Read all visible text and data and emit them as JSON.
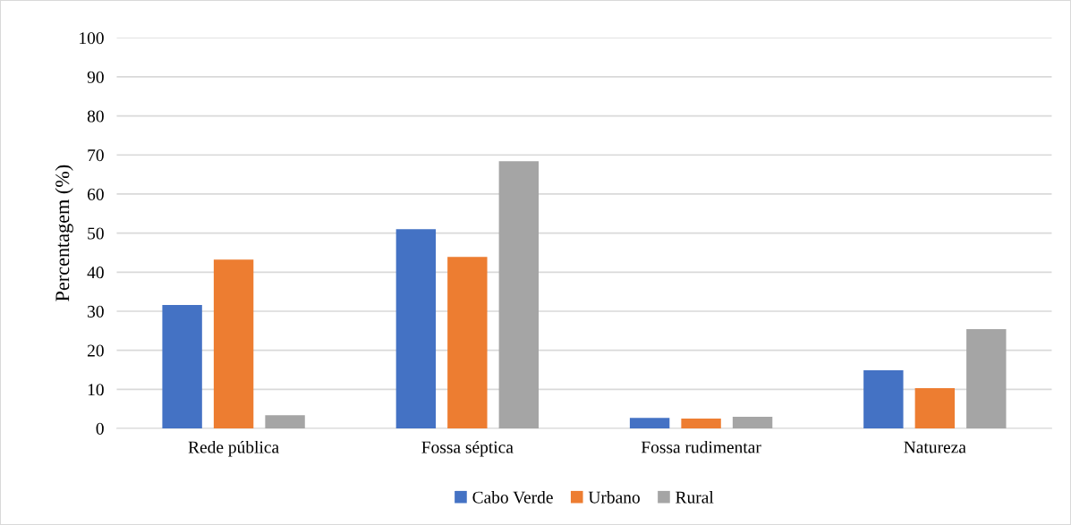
{
  "chart_data": {
    "type": "bar",
    "ylabel": "Percentagem (%)",
    "categories": [
      "Rede pública",
      "Fossa séptica",
      "Fossa rudimentar",
      "Natureza"
    ],
    "series": [
      {
        "name": "Cabo Verde",
        "color": "#4472c4",
        "values": [
          31.6,
          51.0,
          2.7,
          14.9
        ]
      },
      {
        "name": "Urbano",
        "color": "#ed7d31",
        "values": [
          43.2,
          43.9,
          2.5,
          10.3
        ]
      },
      {
        "name": "Rural",
        "color": "#a5a5a5",
        "values": [
          3.4,
          68.4,
          3.0,
          25.4
        ]
      }
    ],
    "ylim": [
      0,
      100
    ],
    "yticks": [
      0,
      10,
      20,
      30,
      40,
      50,
      60,
      70,
      80,
      90,
      100
    ],
    "grid": "y",
    "legend": "bottom"
  }
}
